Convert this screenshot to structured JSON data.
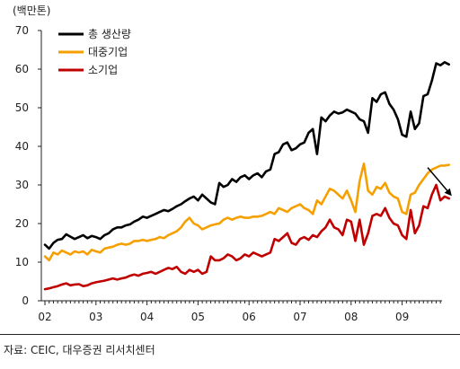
{
  "unit_label": "(백만톤)",
  "source": "자료: CEIC, 대우증권 리서치센터",
  "colors": {
    "total": "#000000",
    "large": "#f5a000",
    "small": "#c00000",
    "arrow": "#000000"
  },
  "chart_data": {
    "type": "line",
    "xlabel": "",
    "ylabel": "(백만톤)",
    "ylim": [
      0,
      70
    ],
    "yticks": [
      0,
      10,
      20,
      30,
      40,
      50,
      60,
      70
    ],
    "xticks": [
      "02",
      "03",
      "04",
      "05",
      "06",
      "07",
      "08",
      "09"
    ],
    "x_start": 2002.0,
    "x_step_months": 1,
    "grid": false,
    "legend_position": "top-left",
    "series": [
      {
        "name": "총 생산량",
        "color": "#000000",
        "values": [
          14.5,
          13.5,
          15.0,
          15.8,
          16.0,
          17.2,
          16.6,
          16.0,
          16.5,
          17.0,
          16.2,
          16.8,
          16.5,
          16.0,
          17.0,
          17.5,
          18.5,
          19.0,
          19.0,
          19.5,
          19.8,
          20.5,
          21.0,
          21.8,
          21.5,
          22.0,
          22.5,
          23.0,
          23.5,
          23.2,
          23.8,
          24.5,
          25.0,
          25.8,
          26.5,
          27.0,
          26.0,
          27.5,
          26.5,
          25.5,
          25.0,
          30.5,
          29.5,
          30.0,
          31.5,
          30.8,
          32.0,
          32.5,
          31.5,
          32.5,
          33.0,
          32.0,
          33.5,
          34.0,
          38.0,
          38.5,
          40.5,
          41.0,
          39.0,
          39.5,
          40.5,
          41.0,
          43.5,
          44.5,
          38.0,
          47.5,
          46.5,
          48.0,
          49.0,
          48.5,
          48.8,
          49.5,
          49.0,
          48.5,
          47.0,
          46.5,
          43.5,
          52.5,
          51.5,
          53.5,
          54.0,
          51.0,
          49.5,
          47.0,
          43.0,
          42.5,
          49.0,
          44.5,
          46.0,
          53.0,
          53.5,
          57.0,
          61.5,
          61.0,
          61.8,
          61.2
        ]
      },
      {
        "name": "대중기업",
        "color": "#f5a000",
        "values": [
          11.5,
          10.5,
          12.5,
          12.0,
          13.0,
          12.5,
          12.0,
          12.8,
          12.5,
          12.8,
          12.0,
          13.2,
          12.8,
          12.5,
          13.5,
          13.8,
          14.0,
          14.5,
          14.8,
          14.5,
          14.8,
          15.5,
          15.5,
          15.8,
          15.5,
          15.8,
          16.0,
          16.5,
          16.2,
          17.0,
          17.5,
          18.0,
          19.0,
          20.5,
          21.5,
          20.0,
          19.5,
          18.5,
          19.0,
          19.5,
          19.8,
          20.0,
          21.0,
          21.5,
          21.0,
          21.5,
          21.8,
          21.5,
          21.5,
          21.8,
          21.8,
          22.0,
          22.5,
          23.0,
          22.5,
          24.0,
          23.5,
          23.0,
          24.0,
          24.5,
          25.0,
          24.0,
          23.5,
          22.5,
          26.0,
          25.0,
          27.0,
          29.0,
          28.5,
          27.5,
          26.5,
          28.5,
          26.0,
          23.0,
          31.0,
          35.5,
          28.5,
          27.5,
          29.5,
          29.0,
          30.5,
          28.0,
          27.0,
          26.5,
          23.0,
          22.5,
          27.5,
          28.0,
          30.0,
          31.5,
          33.0,
          34.0,
          34.5,
          35.0,
          35.0,
          35.2
        ]
      },
      {
        "name": "소기업",
        "color": "#c00000",
        "values": [
          3.0,
          3.2,
          3.5,
          3.8,
          4.2,
          4.5,
          4.0,
          4.2,
          4.3,
          3.8,
          4.0,
          4.5,
          4.8,
          5.0,
          5.2,
          5.5,
          5.8,
          5.5,
          5.8,
          6.0,
          6.5,
          6.8,
          6.5,
          7.0,
          7.2,
          7.5,
          7.0,
          7.5,
          8.0,
          8.5,
          8.2,
          8.8,
          7.5,
          7.0,
          8.0,
          7.5,
          8.0,
          7.0,
          7.5,
          11.5,
          10.5,
          10.5,
          11.0,
          12.0,
          11.5,
          10.5,
          11.0,
          12.0,
          11.5,
          12.5,
          12.0,
          11.5,
          12.0,
          12.5,
          16.0,
          15.5,
          16.5,
          17.5,
          15.0,
          14.5,
          16.0,
          16.5,
          15.8,
          17.0,
          16.5,
          18.0,
          19.0,
          21.0,
          19.0,
          18.5,
          17.0,
          21.0,
          20.5,
          15.5,
          21.0,
          14.5,
          17.5,
          22.0,
          22.5,
          22.0,
          24.0,
          21.5,
          20.0,
          19.5,
          17.0,
          16.0,
          23.5,
          17.5,
          19.5,
          24.5,
          24.0,
          27.5,
          30.0,
          26.0,
          27.0,
          26.5
        ]
      }
    ],
    "annotations": [
      {
        "type": "arrow",
        "from": {
          "x": 2009.5,
          "y": 34.5
        },
        "to": {
          "x": 2009.95,
          "y": 27.5
        }
      }
    ]
  }
}
